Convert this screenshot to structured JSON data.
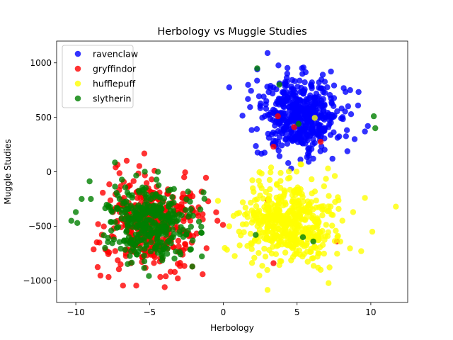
{
  "chart_data": {
    "type": "scatter",
    "title": "Herbology vs Muggle Studies",
    "xlabel": "Herbology",
    "ylabel": "Muggle Studies",
    "xlim": [
      -11.3,
      12.5
    ],
    "ylim": [
      -1200,
      1200
    ],
    "xticks": [
      -10,
      -5,
      0,
      5,
      10
    ],
    "yticks": [
      -1000,
      -500,
      0,
      500,
      1000
    ],
    "grid": false,
    "legend_position": "top-left",
    "series": [
      {
        "name": "ravenclaw",
        "color": "#0000ff",
        "alpha": 0.8,
        "cluster": {
          "cx": 5.2,
          "cy": 520,
          "sx": 1.35,
          "sy": 165,
          "n": 500
        },
        "points": [
          [
            3.0,
            1090
          ],
          [
            2.3,
            940
          ],
          [
            0.4,
            775
          ],
          [
            8.6,
            750
          ],
          [
            9.6,
            370
          ],
          [
            9.8,
            420
          ],
          [
            1.3,
            515
          ],
          [
            2.5,
            605
          ],
          [
            8.9,
            300
          ],
          [
            2.8,
            175
          ],
          [
            3.6,
            230
          ],
          [
            7.4,
            120
          ],
          [
            4.6,
            30
          ],
          [
            4.4,
            80
          ],
          [
            6.2,
            265
          ]
        ]
      },
      {
        "name": "gryffindor",
        "color": "#ff0000",
        "alpha": 0.8,
        "cluster": {
          "cx": -5.0,
          "cy": -470,
          "sx": 1.55,
          "sy": 205,
          "n": 420
        },
        "points": [
          [
            -7.3,
            40
          ],
          [
            -6.8,
            -1045
          ],
          [
            -5.9,
            -1045
          ],
          [
            -1.4,
            -390
          ],
          [
            -0.4,
            -450
          ],
          [
            -8.4,
            -650
          ],
          [
            -2.1,
            -870
          ],
          [
            -3.9,
            -960
          ],
          [
            3.4,
            230
          ],
          [
            4.8,
            410
          ],
          [
            6.6,
            275
          ],
          [
            3.7,
            510
          ],
          [
            3.0,
            -260
          ],
          [
            3.4,
            -840
          ],
          [
            7.7,
            -640
          ]
        ]
      },
      {
        "name": "hufflepuff",
        "color": "#ffff00",
        "alpha": 0.8,
        "cluster": {
          "cx": 4.5,
          "cy": -470,
          "sx": 1.55,
          "sy": 190,
          "n": 500
        },
        "points": [
          [
            11.7,
            -320
          ],
          [
            10.1,
            -550
          ],
          [
            3.0,
            -1085
          ],
          [
            3.2,
            -5
          ],
          [
            6.2,
            495
          ],
          [
            0.4,
            -500
          ],
          [
            0.1,
            -700
          ],
          [
            1.5,
            -330
          ],
          [
            8.8,
            -370
          ],
          [
            9.6,
            -240
          ],
          [
            2.1,
            -790
          ],
          [
            6.6,
            -900
          ]
        ]
      },
      {
        "name": "slytherin",
        "color": "#008000",
        "alpha": 0.8,
        "cluster": {
          "cx": -5.0,
          "cy": -470,
          "sx": 1.5,
          "sy": 170,
          "n": 360
        },
        "points": [
          [
            -10.3,
            -450
          ],
          [
            -9.6,
            -250
          ],
          [
            -10.0,
            -370
          ],
          [
            -9.9,
            -470
          ],
          [
            -2.1,
            -870
          ],
          [
            -1.5,
            -560
          ],
          [
            2.2,
            -580
          ],
          [
            5.4,
            -600
          ],
          [
            6.1,
            -640
          ],
          [
            10.2,
            510
          ],
          [
            10.3,
            400
          ],
          [
            2.3,
            950
          ],
          [
            3.8,
            800
          ],
          [
            5.1,
            440
          ]
        ]
      }
    ]
  }
}
